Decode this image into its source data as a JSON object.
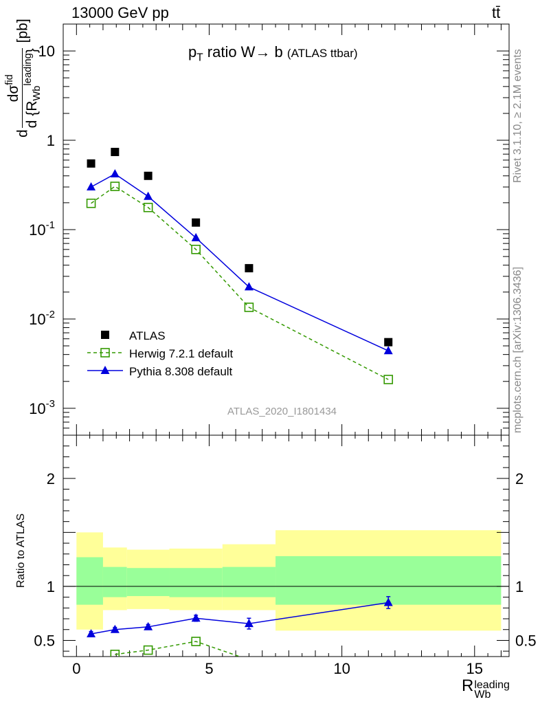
{
  "header": {
    "energy_label": "13000 GeV pp",
    "process_label": "tt̄"
  },
  "side_labels": {
    "rivet": "Rivet 3.1.10, ≥ 2.1M events",
    "mcplots": "mcplots.cern.ch [arXiv:1306.3436]"
  },
  "analysis_id": "ATLAS_2020_I1801434",
  "colors": {
    "data": "#000000",
    "herwig": "#339900",
    "pythia": "#0000dd",
    "band_inner": "#99ff99",
    "band_outer": "#ffff99"
  },
  "chart_data": [
    {
      "type": "scatter",
      "title_main": "p",
      "title_sub": "T",
      "title_rest": " ratio W→ b",
      "title_small": "(ATLAS ttbar)",
      "ylabel": "d σ^{fid} / d {R_{Wb}^{leading}} [pb]",
      "yscale": "log",
      "ylim": [
        0.0005,
        20
      ],
      "xlim": [
        -0.5,
        16.3
      ],
      "y_tick_labels": [
        "10^-3",
        "10^-2",
        "10^-1",
        "1",
        "10"
      ],
      "legend_position": "lower-left",
      "x": [
        0.55,
        1.45,
        2.7,
        4.5,
        6.5,
        11.75
      ],
      "series": [
        {
          "name": "ATLAS",
          "marker": "filled-square",
          "values": [
            0.55,
            0.74,
            0.4,
            0.12,
            0.037,
            0.0055
          ]
        },
        {
          "name": "Herwig 7.2.1 default",
          "marker": "open-square",
          "line": "dashed",
          "values": [
            0.197,
            0.305,
            0.177,
            0.06,
            0.0135,
            0.0021
          ]
        },
        {
          "name": "Pythia 8.308 default",
          "marker": "filled-triangle",
          "line": "solid",
          "values": [
            0.3,
            0.42,
            0.235,
            0.081,
            0.0228,
            0.0044
          ]
        }
      ]
    },
    {
      "type": "line",
      "ylabel": "Ratio to ATLAS",
      "xlabel_main": "R",
      "xlabel_sub": "Wb",
      "xlabel_sup": "leading",
      "ylim": [
        0.35,
        2.4
      ],
      "xlim": [
        -0.5,
        16.3
      ],
      "x_tick_labels": [
        "0",
        "5",
        "10",
        "15"
      ],
      "y_tick_labels": [
        "0.5",
        "1",
        "2"
      ],
      "bins": [
        {
          "x_lo": 0.0,
          "x_hi": 1.0,
          "inner": [
            0.83,
            1.27
          ],
          "outer": [
            0.6,
            1.5
          ]
        },
        {
          "x_lo": 1.0,
          "x_hi": 1.9,
          "inner": [
            0.9,
            1.18
          ],
          "outer": [
            0.78,
            1.36
          ]
        },
        {
          "x_lo": 1.9,
          "x_hi": 3.5,
          "inner": [
            0.91,
            1.17
          ],
          "outer": [
            0.79,
            1.34
          ]
        },
        {
          "x_lo": 3.5,
          "x_hi": 5.5,
          "inner": [
            0.9,
            1.17
          ],
          "outer": [
            0.78,
            1.35
          ]
        },
        {
          "x_lo": 5.5,
          "x_hi": 7.5,
          "inner": [
            0.9,
            1.18
          ],
          "outer": [
            0.78,
            1.39
          ]
        },
        {
          "x_lo": 7.5,
          "x_hi": 16.0,
          "inner": [
            0.83,
            1.28
          ],
          "outer": [
            0.59,
            1.52
          ]
        }
      ],
      "x": [
        0.55,
        1.45,
        2.7,
        4.5,
        6.5,
        11.75
      ],
      "series": [
        {
          "name": "Pythia 8.308 default",
          "values": [
            0.56,
            0.6,
            0.625,
            0.705,
            0.655,
            0.85
          ],
          "errors": [
            0.022,
            0.02,
            0.022,
            0.028,
            0.05,
            0.055
          ]
        },
        {
          "name": "Herwig 7.2.1 default",
          "values": [
            null,
            0.37,
            0.41,
            0.49,
            0.32,
            null
          ]
        }
      ]
    }
  ]
}
